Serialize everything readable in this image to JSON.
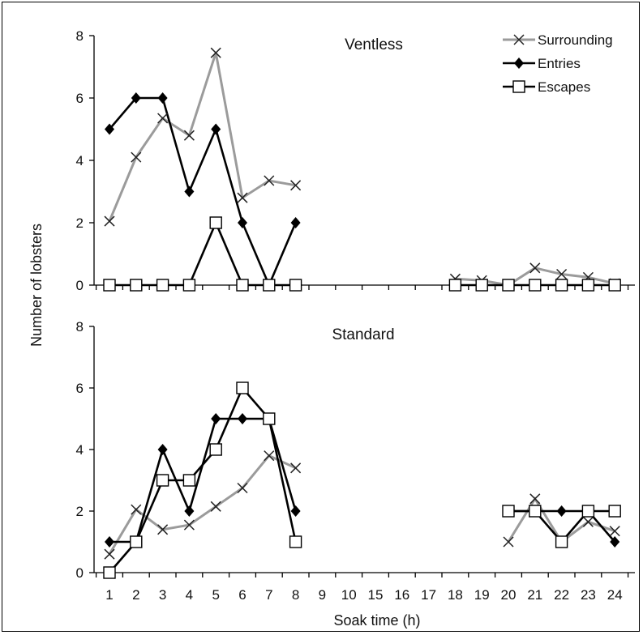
{
  "chart_data": {
    "type": "line",
    "xlabel": "Soak time (h)",
    "ylabel": "Number of lobsters",
    "x_categories": [
      "1",
      "2",
      "3",
      "4",
      "5",
      "6",
      "7",
      "8",
      "9",
      "10",
      "15",
      "16",
      "17",
      "18",
      "19",
      "20",
      "21",
      "22",
      "23",
      "24"
    ],
    "ylim": [
      0,
      8
    ],
    "yticks": [
      0,
      2,
      4,
      6,
      8
    ],
    "legend_placement": "top-right",
    "grid": false,
    "colors": {
      "Surrounding": "#9b9b9b",
      "Entries": "#000000",
      "Escapes": "#000000"
    },
    "legend": [
      {
        "name": "Surrounding",
        "marker": "x"
      },
      {
        "name": "Entries",
        "marker": "diamond"
      },
      {
        "name": "Escapes",
        "marker": "open-square"
      }
    ],
    "panels": [
      {
        "title": "Ventless",
        "series": [
          {
            "name": "Surrounding",
            "segments": [
              {
                "x": [
                  "1",
                  "2",
                  "3",
                  "4",
                  "5",
                  "6",
                  "7",
                  "8"
                ],
                "y": [
                  2.05,
                  4.1,
                  5.35,
                  4.8,
                  7.45,
                  2.8,
                  3.35,
                  3.2
                ]
              },
              {
                "x": [
                  "18",
                  "19",
                  "20",
                  "21",
                  "22",
                  "23",
                  "24"
                ],
                "y": [
                  0.2,
                  0.15,
                  0.0,
                  0.55,
                  0.35,
                  0.25,
                  0.05
                ]
              }
            ]
          },
          {
            "name": "Entries",
            "segments": [
              {
                "x": [
                  "1",
                  "2",
                  "3",
                  "4",
                  "5",
                  "6",
                  "7",
                  "8"
                ],
                "y": [
                  5,
                  6,
                  6,
                  3,
                  5,
                  2,
                  0,
                  2
                ]
              }
            ]
          },
          {
            "name": "Escapes",
            "segments": [
              {
                "x": [
                  "1",
                  "2",
                  "3",
                  "4",
                  "5",
                  "6",
                  "7",
                  "8"
                ],
                "y": [
                  0,
                  0,
                  0,
                  0,
                  2,
                  0,
                  0,
                  0
                ]
              },
              {
                "x": [
                  "18",
                  "19",
                  "20",
                  "21",
                  "22",
                  "23",
                  "24"
                ],
                "y": [
                  0,
                  0,
                  0,
                  0,
                  0,
                  0,
                  0
                ]
              }
            ]
          }
        ]
      },
      {
        "title": "Standard",
        "series": [
          {
            "name": "Surrounding",
            "segments": [
              {
                "x": [
                  "1",
                  "2",
                  "3",
                  "4",
                  "5",
                  "6",
                  "7",
                  "8"
                ],
                "y": [
                  0.6,
                  2.05,
                  1.4,
                  1.55,
                  2.15,
                  2.75,
                  3.8,
                  3.4
                ]
              },
              {
                "x": [
                  "20",
                  "21",
                  "22",
                  "23",
                  "24"
                ],
                "y": [
                  1.0,
                  2.4,
                  1.0,
                  1.65,
                  1.35
                ]
              }
            ]
          },
          {
            "name": "Entries",
            "segments": [
              {
                "x": [
                  "1",
                  "2",
                  "3",
                  "4",
                  "5",
                  "6",
                  "7",
                  "8"
                ],
                "y": [
                  1,
                  1,
                  4,
                  2,
                  5,
                  5,
                  5,
                  2
                ]
              },
              {
                "x": [
                  "20",
                  "21",
                  "22",
                  "23",
                  "24"
                ],
                "y": [
                  2,
                  2,
                  2,
                  2,
                  1
                ]
              }
            ]
          },
          {
            "name": "Escapes",
            "segments": [
              {
                "x": [
                  "1",
                  "2",
                  "3",
                  "4",
                  "5",
                  "6",
                  "7",
                  "8"
                ],
                "y": [
                  0,
                  1,
                  3,
                  3,
                  4,
                  6,
                  5,
                  1
                ]
              },
              {
                "x": [
                  "20",
                  "21",
                  "22",
                  "23",
                  "24"
                ],
                "y": [
                  2,
                  2,
                  1,
                  2,
                  2
                ]
              }
            ]
          }
        ]
      }
    ]
  }
}
